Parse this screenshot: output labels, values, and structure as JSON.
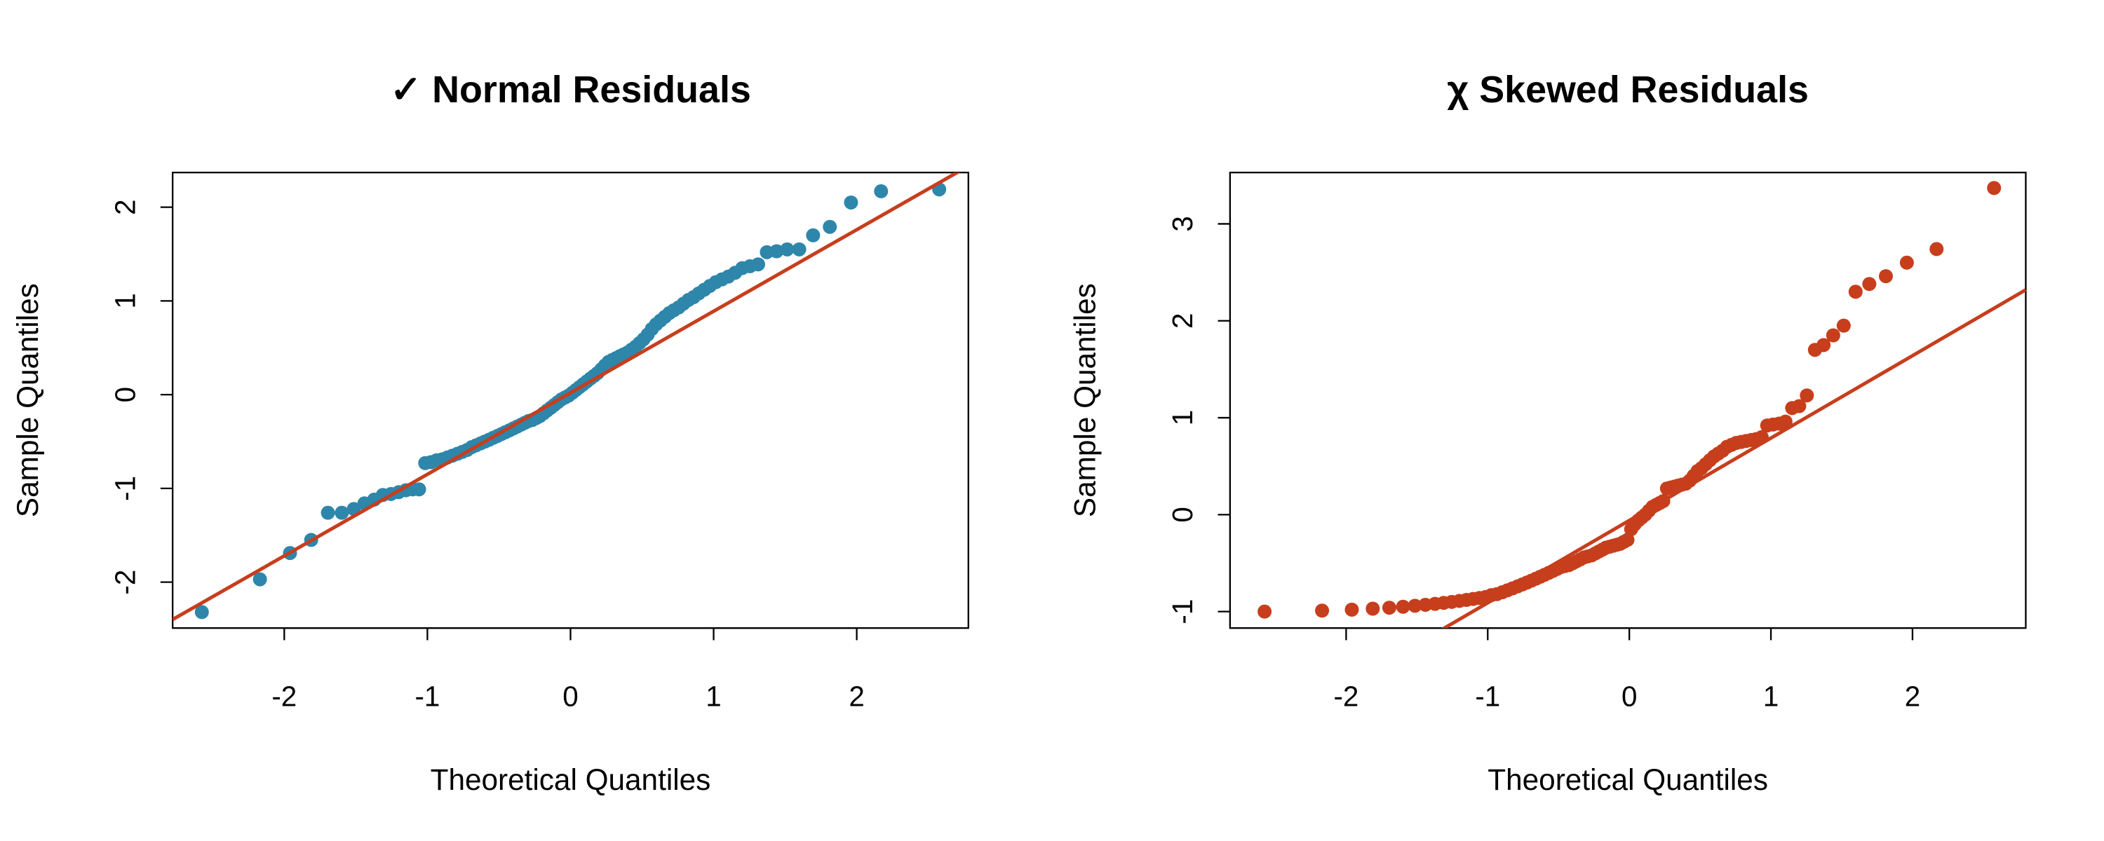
{
  "chart_data": [
    {
      "type": "scatter",
      "title": "✓ Normal Residuals",
      "x_label": "Theoretical Quantiles",
      "y_label": "Sample Quantiles",
      "color": "#2E86AB",
      "x": [
        -2.576,
        -2.17,
        -1.96,
        -1.812,
        -1.695,
        -1.598,
        -1.514,
        -1.44,
        -1.372,
        -1.311,
        -1.254,
        -1.2,
        -1.15,
        -1.103,
        -1.058,
        -1.015,
        -0.974,
        -0.935,
        -0.896,
        -0.86,
        -0.824,
        -0.789,
        -0.755,
        -0.722,
        -0.69,
        -0.659,
        -0.628,
        -0.598,
        -0.568,
        -0.539,
        -0.51,
        -0.482,
        -0.454,
        -0.426,
        -0.399,
        -0.372,
        -0.345,
        -0.319,
        -0.292,
        -0.266,
        -0.24,
        -0.215,
        -0.189,
        -0.164,
        -0.138,
        -0.113,
        -0.088,
        -0.063,
        -0.038,
        -0.013,
        0.013,
        0.038,
        0.063,
        0.088,
        0.113,
        0.138,
        0.164,
        0.189,
        0.215,
        0.24,
        0.266,
        0.292,
        0.319,
        0.345,
        0.372,
        0.399,
        0.426,
        0.454,
        0.482,
        0.51,
        0.539,
        0.568,
        0.598,
        0.628,
        0.659,
        0.69,
        0.722,
        0.755,
        0.789,
        0.824,
        0.86,
        0.896,
        0.935,
        0.974,
        1.015,
        1.058,
        1.103,
        1.15,
        1.2,
        1.254,
        1.311,
        1.372,
        1.44,
        1.514,
        1.598,
        1.695,
        1.812,
        1.96,
        2.17,
        2.576
      ],
      "values": [
        -2.32,
        -1.97,
        -1.69,
        -1.55,
        -1.26,
        -1.26,
        -1.22,
        -1.16,
        -1.12,
        -1.07,
        -1.06,
        -1.04,
        -1.02,
        -1.01,
        -1.01,
        -0.73,
        -0.72,
        -0.7,
        -0.69,
        -0.67,
        -0.65,
        -0.63,
        -0.61,
        -0.59,
        -0.56,
        -0.54,
        -0.52,
        -0.5,
        -0.48,
        -0.46,
        -0.44,
        -0.42,
        -0.4,
        -0.38,
        -0.36,
        -0.34,
        -0.32,
        -0.3,
        -0.28,
        -0.27,
        -0.25,
        -0.23,
        -0.2,
        -0.17,
        -0.14,
        -0.11,
        -0.08,
        -0.05,
        -0.03,
        -0.01,
        0.02,
        0.05,
        0.08,
        0.11,
        0.14,
        0.17,
        0.2,
        0.23,
        0.27,
        0.31,
        0.35,
        0.37,
        0.39,
        0.41,
        0.43,
        0.45,
        0.48,
        0.51,
        0.55,
        0.59,
        0.64,
        0.7,
        0.75,
        0.79,
        0.83,
        0.87,
        0.9,
        0.93,
        0.97,
        1.01,
        1.04,
        1.08,
        1.12,
        1.16,
        1.2,
        1.23,
        1.26,
        1.3,
        1.35,
        1.37,
        1.39,
        1.52,
        1.53,
        1.55,
        1.55,
        1.7,
        1.79,
        2.05,
        2.17,
        2.19
      ],
      "line": {
        "intercept": 0.02,
        "slope": 0.87,
        "color": "#C73E1D"
      },
      "xlim": [
        -2.78,
        2.78
      ],
      "ylim": [
        -2.49,
        2.37
      ],
      "xticks": [
        -2,
        -1,
        0,
        1,
        2
      ],
      "yticks": [
        -2,
        -1,
        0,
        1,
        2
      ]
    },
    {
      "type": "scatter",
      "title": "χ Skewed Residuals",
      "x_label": "Theoretical Quantiles",
      "y_label": "Sample Quantiles",
      "color": "#C73E1D",
      "x": [
        -2.576,
        -2.17,
        -1.96,
        -1.812,
        -1.695,
        -1.598,
        -1.514,
        -1.44,
        -1.372,
        -1.311,
        -1.254,
        -1.2,
        -1.15,
        -1.103,
        -1.058,
        -1.015,
        -0.974,
        -0.935,
        -0.896,
        -0.86,
        -0.824,
        -0.789,
        -0.755,
        -0.722,
        -0.69,
        -0.659,
        -0.628,
        -0.598,
        -0.568,
        -0.539,
        -0.51,
        -0.482,
        -0.454,
        -0.426,
        -0.399,
        -0.372,
        -0.345,
        -0.319,
        -0.292,
        -0.266,
        -0.24,
        -0.215,
        -0.189,
        -0.164,
        -0.138,
        -0.113,
        -0.088,
        -0.063,
        -0.038,
        -0.013,
        0.013,
        0.038,
        0.063,
        0.088,
        0.113,
        0.138,
        0.164,
        0.189,
        0.215,
        0.24,
        0.266,
        0.292,
        0.319,
        0.345,
        0.372,
        0.399,
        0.426,
        0.454,
        0.482,
        0.51,
        0.539,
        0.568,
        0.598,
        0.628,
        0.659,
        0.69,
        0.722,
        0.755,
        0.789,
        0.824,
        0.86,
        0.896,
        0.935,
        0.974,
        1.015,
        1.058,
        1.103,
        1.15,
        1.2,
        1.254,
        1.311,
        1.372,
        1.44,
        1.514,
        1.598,
        1.695,
        1.812,
        1.96,
        2.17,
        2.576
      ],
      "values": [
        -1.0,
        -0.99,
        -0.98,
        -0.97,
        -0.96,
        -0.95,
        -0.94,
        -0.93,
        -0.92,
        -0.91,
        -0.9,
        -0.89,
        -0.88,
        -0.87,
        -0.86,
        -0.85,
        -0.83,
        -0.82,
        -0.8,
        -0.78,
        -0.76,
        -0.74,
        -0.72,
        -0.7,
        -0.68,
        -0.66,
        -0.64,
        -0.62,
        -0.6,
        -0.58,
        -0.56,
        -0.54,
        -0.53,
        -0.52,
        -0.5,
        -0.48,
        -0.46,
        -0.44,
        -0.43,
        -0.42,
        -0.4,
        -0.38,
        -0.36,
        -0.34,
        -0.33,
        -0.32,
        -0.31,
        -0.3,
        -0.28,
        -0.26,
        -0.15,
        -0.1,
        -0.06,
        -0.03,
        0.0,
        0.04,
        0.08,
        0.1,
        0.12,
        0.14,
        0.27,
        0.28,
        0.29,
        0.3,
        0.31,
        0.32,
        0.35,
        0.4,
        0.45,
        0.48,
        0.52,
        0.56,
        0.6,
        0.63,
        0.66,
        0.7,
        0.72,
        0.74,
        0.75,
        0.76,
        0.77,
        0.78,
        0.8,
        0.92,
        0.93,
        0.94,
        0.96,
        1.1,
        1.12,
        1.23,
        1.7,
        1.75,
        1.85,
        1.95,
        2.3,
        2.38,
        2.46,
        2.6,
        2.74,
        3.37
      ],
      "line": {
        "intercept": -0.06,
        "slope": 0.85,
        "color": "#C73E1D"
      },
      "xlim": [
        -2.82,
        2.8
      ],
      "ylim": [
        -1.17,
        3.53
      ],
      "xticks": [
        -2,
        -1,
        0,
        1,
        2
      ],
      "yticks": [
        -1,
        0,
        1,
        2,
        3
      ]
    }
  ]
}
